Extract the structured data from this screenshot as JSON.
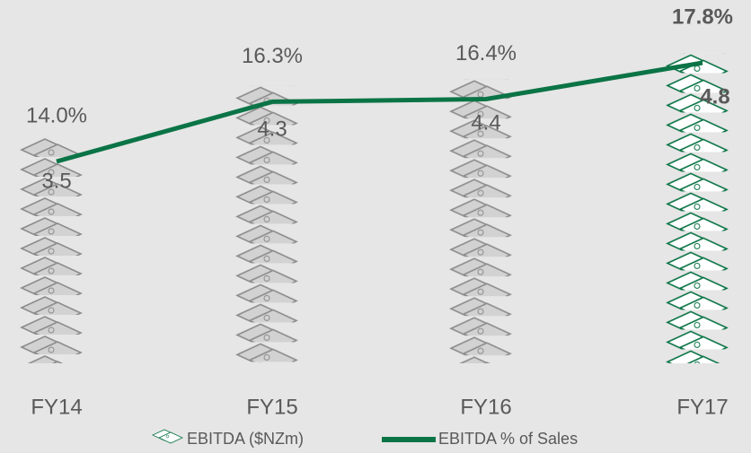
{
  "chart_data": {
    "type": "pictograph-line",
    "categories": [
      "FY14",
      "FY15",
      "FY16",
      "FY17"
    ],
    "category_colors": [
      "#595959",
      "#595959",
      "#595959",
      "#0b7446"
    ],
    "series": [
      {
        "name": "EBITDA ($NZm)",
        "type": "pictograph",
        "color": "#8c8c8c",
        "fill": "#d2d2d2",
        "point_colors": [
          "#8c8c8c",
          "#8c8c8c",
          "#8c8c8c",
          "#0b7446"
        ],
        "values": [
          3.5,
          4.3,
          4.4,
          4.8
        ]
      },
      {
        "name": "EBITDA % of Sales",
        "type": "line",
        "color": "#0b7446",
        "values": [
          14.0,
          16.3,
          16.4,
          17.8
        ],
        "value_labels": [
          "14.0%",
          "16.3%",
          "16.4%",
          "17.8%"
        ]
      }
    ]
  }
}
